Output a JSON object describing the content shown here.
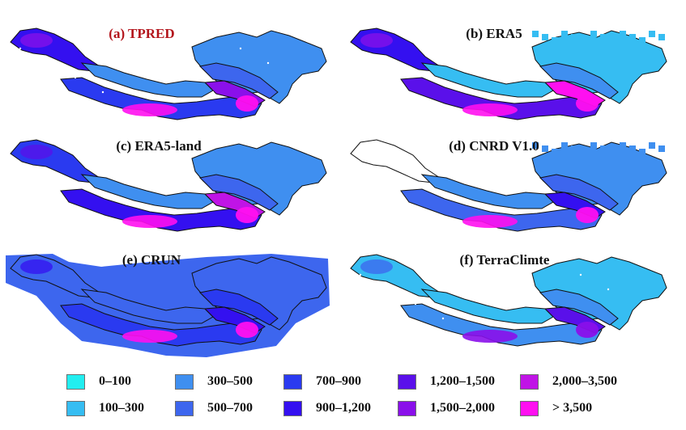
{
  "panels": [
    {
      "id": "a",
      "title": "(a) TPRED",
      "title_color": "#b3141b",
      "style": {
        "base_level": 2,
        "lower_level": 4,
        "hot_level": 7,
        "lower_hot_level": 10,
        "west_level": 5,
        "dots": true
      }
    },
    {
      "id": "b",
      "title": "(b) ERA5",
      "title_color": "#111111",
      "style": {
        "base_level": 1,
        "lower_level": 6,
        "hot_level": 9,
        "lower_hot_level": 10,
        "west_level": 5,
        "pixelated": true
      }
    },
    {
      "id": "c",
      "title": "(c) ERA5-land",
      "title_color": "#111111",
      "style": {
        "base_level": 2,
        "lower_level": 5,
        "hot_level": 8,
        "lower_hot_level": 10,
        "west_level": 4
      }
    },
    {
      "id": "d",
      "title": "(d) CNRD V1.0",
      "title_color": "#111111",
      "style": {
        "base_level": 2,
        "lower_level": 3,
        "hot_level": 5,
        "lower_hot_level": 9,
        "west_level": 0,
        "west_blank": true,
        "pixelated": true
      }
    },
    {
      "id": "e",
      "title": "(e) CRUN",
      "title_color": "#111111",
      "style": {
        "base_level": 3,
        "lower_level": 4,
        "hot_level": 5,
        "lower_hot_level": 9,
        "west_level": 3,
        "coarse": true
      }
    },
    {
      "id": "f",
      "title": "(f) TerraClimte",
      "title_color": "#111111",
      "style": {
        "base_level": 1,
        "lower_level": 2,
        "hot_level": 6,
        "lower_hot_level": 7,
        "west_level": 1,
        "dots": true
      }
    }
  ],
  "legend": {
    "items": [
      {
        "label": "0–100",
        "color": "#22eef0"
      },
      {
        "label": "100–300",
        "color": "#36bdf2"
      },
      {
        "label": "300–500",
        "color": "#3f8ff0"
      },
      {
        "label": "500–700",
        "color": "#3d66ee"
      },
      {
        "label": "700–900",
        "color": "#2a3af0"
      },
      {
        "label": "900–1,200",
        "color": "#3410f0"
      },
      {
        "label": "1,200–1,500",
        "color": "#5a10ea"
      },
      {
        "label": "1,500–2,000",
        "color": "#8a10ea"
      },
      {
        "label": "2,000–3,500",
        "color": "#c014e6"
      },
      {
        "label": "> 3,500",
        "color": "#ff10f0"
      }
    ]
  }
}
